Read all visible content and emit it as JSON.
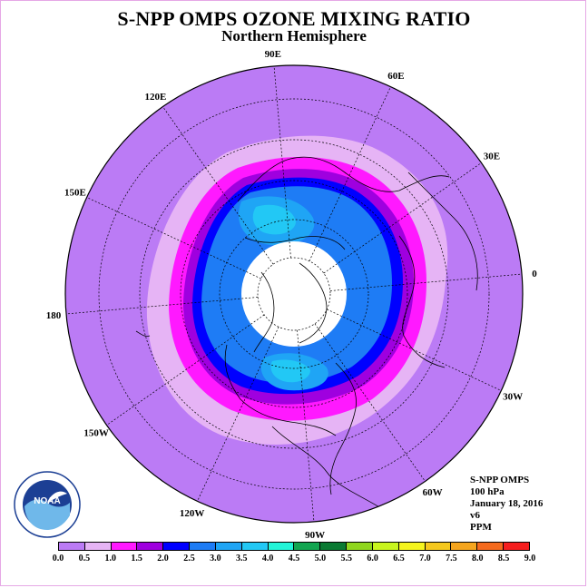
{
  "title": "S-NPP OMPS OZONE MIXING RATIO",
  "subtitle": "Northern Hemisphere",
  "longitude_labels": [
    {
      "text": "90E",
      "lon": 90
    },
    {
      "text": "60E",
      "lon": 60
    },
    {
      "text": "30E",
      "lon": 30
    },
    {
      "text": "0",
      "lon": 0
    },
    {
      "text": "30W",
      "lon": -30
    },
    {
      "text": "60W",
      "lon": -60
    },
    {
      "text": "90W",
      "lon": -90
    },
    {
      "text": "120W",
      "lon": -120
    },
    {
      "text": "150W",
      "lon": -150
    },
    {
      "text": "180",
      "lon": 180
    },
    {
      "text": "150E",
      "lon": 150
    },
    {
      "text": "120E",
      "lon": 120
    }
  ],
  "info": {
    "instrument": "S-NPP OMPS",
    "pressure": "100 hPa",
    "date": "January 18, 2016",
    "version": "v6",
    "units": "PPM"
  },
  "logo": {
    "name": "noaa-logo",
    "text": "NOAA"
  },
  "colorbar": {
    "ticks": [
      "0.0",
      "0.5",
      "1.0",
      "1.5",
      "2.0",
      "2.5",
      "3.0",
      "3.5",
      "4.0",
      "4.5",
      "5.0",
      "5.5",
      "6.0",
      "6.5",
      "7.0",
      "7.5",
      "8.0",
      "8.5",
      "9.0"
    ],
    "colors": [
      "#bb7bf5",
      "#e6b4f5",
      "#ff19ff",
      "#9f00df",
      "#0000ff",
      "#1e7cf5",
      "#1fa5f5",
      "#22c8f5",
      "#22f5d8",
      "#12a550",
      "#0a7a32",
      "#8fd61e",
      "#c8f51e",
      "#f5f51e",
      "#f5c81e",
      "#f5a51e",
      "#f56a1e",
      "#f51e1e",
      "#8b5a3c"
    ]
  },
  "chart_data": {
    "type": "heatmap",
    "title": "S-NPP OMPS OZONE MIXING RATIO",
    "subtitle": "Northern Hemisphere",
    "projection": "north-polar-stereographic",
    "field": "ozone mixing ratio",
    "units": "PPM",
    "level": "100 hPa",
    "date": "January 18, 2016",
    "scale_min": 0.0,
    "scale_max": 9.0,
    "scale_step": 0.5,
    "regions": [
      {
        "range": [
          0.0,
          0.5
        ],
        "area": "outer mid-latitudes (outside ~30N)"
      },
      {
        "range": [
          0.5,
          1.0
        ],
        "area": "band around 30-40N"
      },
      {
        "range": [
          1.0,
          1.5
        ],
        "area": "narrow band around 40-45N"
      },
      {
        "range": [
          1.5,
          2.0
        ],
        "area": "band around 45-50N"
      },
      {
        "range": [
          2.0,
          2.5
        ],
        "area": "band around 50-55N"
      },
      {
        "range": [
          2.5,
          3.0
        ],
        "area": "high latitudes 55-75N"
      },
      {
        "range": [
          3.0,
          3.5
        ],
        "area": "patches over Siberia and North America"
      },
      {
        "range": "no data",
        "area": "polar night above ~78N"
      }
    ]
  }
}
